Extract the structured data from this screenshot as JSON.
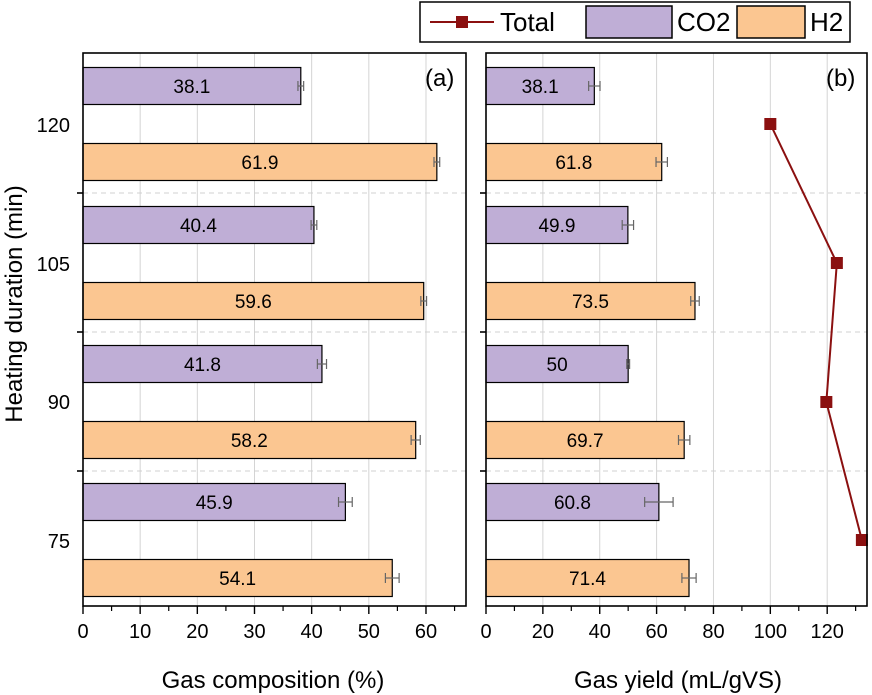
{
  "chart_data": {
    "type": "bar",
    "orientation": "horizontal",
    "ylabel": "Heating duration (min)",
    "categories": [
      "120",
      "105",
      "90",
      "75"
    ],
    "legend": {
      "position": "top-right",
      "entries": [
        "Total",
        "CO2",
        "H2"
      ]
    },
    "colors": {
      "co2": "#bfaed6",
      "h2": "#fbc691",
      "total": "#8b1010"
    },
    "panels": [
      {
        "tag": "(a)",
        "xlabel": "Gas composition (%)",
        "xlim": [
          0,
          67
        ],
        "xticks": [
          0,
          10,
          20,
          30,
          40,
          50,
          60
        ],
        "series": [
          {
            "name": "CO2",
            "values": [
              38.1,
              40.4,
              41.8,
              45.9
            ],
            "errors": [
              0.5,
              0.5,
              0.8,
              1.2
            ],
            "labels": [
              "38.1",
              "40.4",
              "41.8",
              "45.9"
            ]
          },
          {
            "name": "H2",
            "values": [
              61.9,
              59.6,
              58.2,
              54.1
            ],
            "errors": [
              0.5,
              0.5,
              0.8,
              1.2
            ],
            "labels": [
              "61.9",
              "59.6",
              "58.2",
              "54.1"
            ]
          }
        ]
      },
      {
        "tag": "(b)",
        "xlabel": "Gas yield (mL/gVS)",
        "xlim": [
          0,
          134
        ],
        "xticks": [
          0,
          20,
          40,
          60,
          80,
          100,
          120
        ],
        "series": [
          {
            "name": "CO2",
            "values": [
              38.1,
              49.9,
              50,
              60.8
            ],
            "errors": [
              2,
              2,
              0.5,
              5
            ],
            "labels": [
              "38.1",
              "49.9",
              "50",
              "60.8"
            ]
          },
          {
            "name": "H2",
            "values": [
              61.8,
              73.5,
              69.7,
              71.4
            ],
            "errors": [
              2,
              1.5,
              2,
              2.5
            ],
            "labels": [
              "61.8",
              "73.5",
              "69.7",
              "71.4"
            ]
          }
        ],
        "total": {
          "name": "Total",
          "values": [
            100,
            123.4,
            119.7,
            132.2
          ]
        }
      }
    ]
  }
}
